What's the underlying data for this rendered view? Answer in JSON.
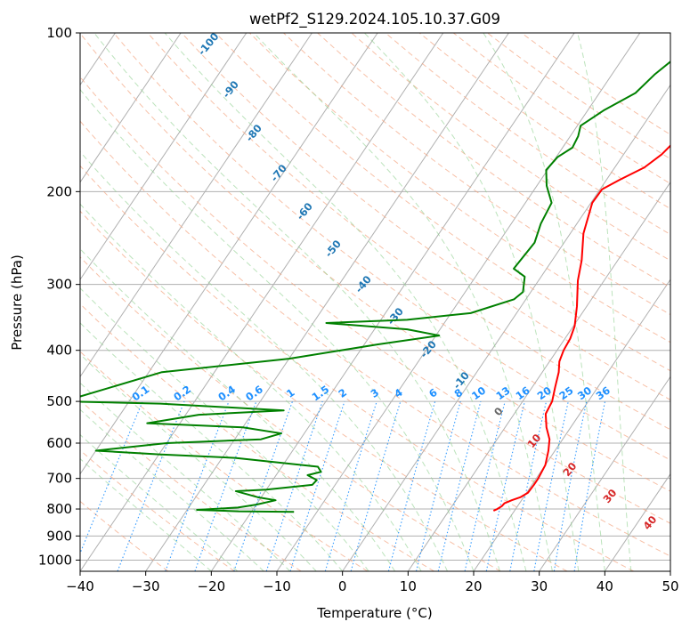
{
  "chart_data": {
    "type": "line",
    "title": "wetPf2_S129.2024.105.10.37.G09",
    "xlabel": "Temperature (°C)",
    "ylabel": "Pressure (hPa)",
    "xlim": [
      -40,
      50
    ],
    "ylim": [
      1050,
      100
    ],
    "y_scale": "log",
    "x_ticks": [
      -40,
      -30,
      -20,
      -10,
      0,
      10,
      20,
      30,
      40,
      50
    ],
    "y_ticks": [
      100,
      200,
      300,
      400,
      500,
      600,
      700,
      800,
      900,
      1000
    ],
    "x_tick_labels": [
      "−40",
      "−30",
      "−20",
      "−10",
      "0",
      "10",
      "20",
      "30",
      "40",
      "50"
    ],
    "y_tick_labels": [
      "100",
      "200",
      "300",
      "400",
      "500",
      "600",
      "700",
      "800",
      "900",
      "1000"
    ],
    "grid": true,
    "series": [
      {
        "color": "#ff0000",
        "points": [
          [
            16.8,
            806
          ],
          [
            17.2,
            800
          ],
          [
            17.6,
            790
          ],
          [
            17.7,
            780
          ],
          [
            18.5,
            770
          ],
          [
            19.5,
            760
          ],
          [
            20.2,
            745
          ],
          [
            20.3,
            720
          ],
          [
            20.3,
            700
          ],
          [
            20.0,
            660
          ],
          [
            19.0,
            620
          ],
          [
            18.0,
            590
          ],
          [
            16.3,
            560
          ],
          [
            14.8,
            528
          ],
          [
            14.5,
            500
          ],
          [
            13.5,
            470
          ],
          [
            12.5,
            440
          ],
          [
            11.5,
            420
          ],
          [
            11.0,
            400
          ],
          [
            10.8,
            380
          ],
          [
            10.2,
            360
          ],
          [
            8.5,
            330
          ],
          [
            6.0,
            295
          ],
          [
            4.5,
            270
          ],
          [
            2.0,
            240
          ],
          [
            0.2,
            210
          ],
          [
            0.3,
            198
          ],
          [
            2.0,
            190
          ],
          [
            4.5,
            180
          ],
          [
            5.8,
            170
          ],
          [
            6.5,
            160
          ],
          [
            7.0,
            150
          ],
          [
            8.2,
            140
          ],
          [
            9.2,
            130
          ],
          [
            10.0,
            120
          ],
          [
            11.2,
            110
          ],
          [
            12.5,
            100
          ]
        ]
      },
      {
        "color": "#008000",
        "points": [
          [
            -13.5,
            810
          ],
          [
            -22.0,
            808
          ],
          [
            -28.5,
            803
          ],
          [
            -22.5,
            795
          ],
          [
            -20.0,
            785
          ],
          [
            -17.5,
            770
          ],
          [
            -20.5,
            760
          ],
          [
            -24.5,
            740
          ],
          [
            -20.0,
            735
          ],
          [
            -13.5,
            720
          ],
          [
            -13.3,
            705
          ],
          [
            -15.2,
            690
          ],
          [
            -13.5,
            680
          ],
          [
            -14.5,
            665
          ],
          [
            -28.0,
            640
          ],
          [
            -40.0,
            630
          ],
          [
            -50.0,
            620
          ],
          [
            -40.0,
            600
          ],
          [
            -26.0,
            590
          ],
          [
            -23.5,
            575
          ],
          [
            -30.0,
            560
          ],
          [
            -45.0,
            550
          ],
          [
            -38.0,
            530
          ],
          [
            -25.5,
            520
          ],
          [
            -45.0,
            505
          ],
          [
            -60.0,
            500
          ],
          [
            -48.0,
            440
          ],
          [
            -30.0,
            415
          ],
          [
            -18.0,
            390
          ],
          [
            -9.5,
            375
          ],
          [
            -15.0,
            365
          ],
          [
            -28.0,
            355
          ],
          [
            -16.0,
            350
          ],
          [
            -7.0,
            340
          ],
          [
            -1.8,
            320
          ],
          [
            -1.2,
            310
          ],
          [
            -2.5,
            290
          ],
          [
            -5.0,
            280
          ],
          [
            -4.5,
            250
          ],
          [
            -5.5,
            230
          ],
          [
            -6.0,
            210
          ],
          [
            -8.5,
            195
          ],
          [
            -10.2,
            182
          ],
          [
            -9.8,
            172
          ],
          [
            -8.5,
            165
          ],
          [
            -8.8,
            157
          ],
          [
            -9.5,
            150
          ],
          [
            -7.5,
            140
          ],
          [
            -4.5,
            130
          ],
          [
            -3.5,
            120
          ],
          [
            -1.8,
            110
          ],
          [
            -0.5,
            100
          ]
        ]
      }
    ],
    "dry_adiabat_labels": [
      "-100",
      "-90",
      "-80",
      "-70",
      "-60",
      "-50",
      "-40",
      "-30",
      "-20",
      "-10"
    ],
    "moist_adiabat_labels": [
      "0",
      "10",
      "20",
      "30",
      "40"
    ],
    "mixing_ratio_labels": [
      "0.1",
      "0.2",
      "0.4",
      "0.6",
      "1",
      "1.5",
      "2",
      "3",
      "4",
      "6",
      "8",
      "10",
      "13",
      "16",
      "20",
      "25",
      "30",
      "36"
    ],
    "colors": {
      "temperature": "#ff0000",
      "dewpoint": "#008000",
      "dry_adiabat": "#1f77b4",
      "moist_adiabat": "#d62728",
      "mixing_ratio": "#1e90ff",
      "grid": "#b0b0b0"
    }
  }
}
